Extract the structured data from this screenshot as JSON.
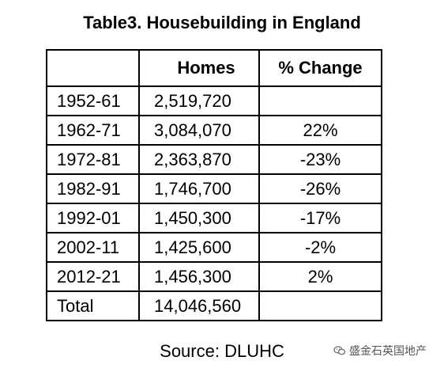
{
  "title": "Table3. Housebuilding in England",
  "table": {
    "headers": [
      "",
      "Homes",
      "% Change"
    ],
    "rows": [
      {
        "period": "1952-61",
        "homes": "2,519,720",
        "change": ""
      },
      {
        "period": "1962-71",
        "homes": "3,084,070",
        "change": "22%"
      },
      {
        "period": "1972-81",
        "homes": "2,363,870",
        "change": "-23%"
      },
      {
        "period": "1982-91",
        "homes": "1,746,700",
        "change": "-26%"
      },
      {
        "period": "1992-01",
        "homes": "1,450,300",
        "change": "-17%"
      },
      {
        "period": "2002-11",
        "homes": "1,425,600",
        "change": "-2%"
      },
      {
        "period": "2012-21",
        "homes": "1,456,300",
        "change": "2%"
      }
    ],
    "total": {
      "label": "Total",
      "homes": "14,046,560",
      "change": ""
    }
  },
  "source": "Source: DLUHC",
  "watermark": {
    "text": "盛金石英国地产",
    "icon": "wechat-logo-icon"
  }
}
